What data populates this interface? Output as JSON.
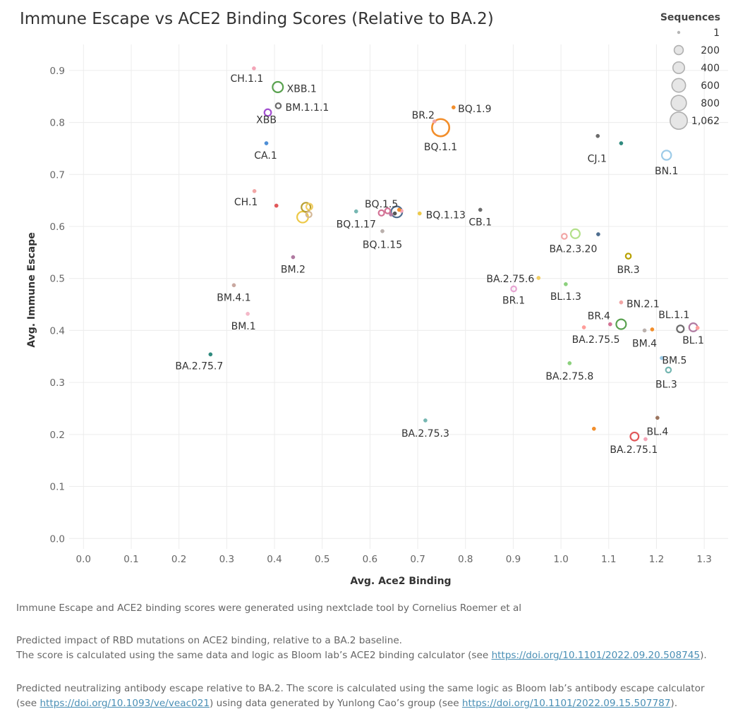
{
  "title": "Immune Escape vs ACE2 Binding Scores (Relative to BA.2)",
  "footer": {
    "note1": "Immune Escape and ACE2 binding scores were generated using nextclade tool by Cornelius Roemer et al",
    "note2_line1": "Predicted impact of RBD mutations on ACE2 binding, relative to a BA.2 baseline.",
    "note2_line2": "The score is calculated using the same data and logic as Bloom lab’s ACE2 binding calculator (see ",
    "note2_link": "https://doi.org/10.1101/2022.09.20.508745",
    "note2_end": ").",
    "note3_line1": "Predicted neutralizing antibody escape relative to BA.2. The score is calculated using the same logic as Bloom lab’s antibody escape calculator",
    "note3_pre": "(see ",
    "note3_link1": "https://doi.org/10.1093/ve/veac021",
    "note3_mid": ") using data generated by Yunlong Cao’s group (see ",
    "note3_link2": "https://doi.org/10.1101/2022.09.15.507787",
    "note3_end": ")."
  },
  "chart_data": {
    "type": "scatter",
    "xlabel": "Avg. Ace2 Binding",
    "ylabel": "Avg. Immune Escape",
    "xlim": [
      -0.03,
      1.35
    ],
    "ylim": [
      -0.02,
      0.95
    ],
    "xticks": [
      "0.0",
      "0.1",
      "0.2",
      "0.3",
      "0.4",
      "0.5",
      "0.6",
      "0.7",
      "0.8",
      "0.9",
      "1.0",
      "1.1",
      "1.2",
      "1.3"
    ],
    "yticks": [
      "0.0",
      "0.1",
      "0.2",
      "0.3",
      "0.4",
      "0.5",
      "0.6",
      "0.7",
      "0.8",
      "0.9"
    ],
    "grid": true,
    "legend": {
      "title": "Sequences",
      "position": "top-right",
      "entries": [
        {
          "label": "1",
          "size": 1
        },
        {
          "label": "200",
          "size": 200
        },
        {
          "label": "400",
          "size": 400
        },
        {
          "label": "600",
          "size": 600
        },
        {
          "label": "800",
          "size": 800
        },
        {
          "label": "1,062",
          "size": 1062
        }
      ]
    },
    "points": [
      {
        "label": "CH.1.1",
        "x": 0.357,
        "y": 0.904,
        "size": 5,
        "color": "#f4a6b8"
      },
      {
        "label": "XBB.1",
        "x": 0.407,
        "y": 0.868,
        "size": 300,
        "color": "#59a14f"
      },
      {
        "label": "BM.1.1.1",
        "x": 0.408,
        "y": 0.832,
        "size": 30,
        "color": "#6b6b6b"
      },
      {
        "label": "XBB",
        "x": 0.386,
        "y": 0.819,
        "size": 80,
        "color": "#a24fd0"
      },
      {
        "label": "CA.1",
        "x": 0.383,
        "y": 0.76,
        "size": 20,
        "color": "#4e8fd6"
      },
      {
        "label": "BR.2",
        "x": 0.735,
        "y": 0.802,
        "size": 3,
        "color": "#f2a6a6"
      },
      {
        "label": "BQ.1.9",
        "x": 0.775,
        "y": 0.829,
        "size": 15,
        "color": "#f28e2b"
      },
      {
        "label": "BQ.1.1",
        "x": 0.748,
        "y": 0.79,
        "size": 1062,
        "color": "#f28e2b"
      },
      {
        "label": "CJ.1",
        "x": 1.077,
        "y": 0.774,
        "size": 5,
        "color": "#6b6b6b"
      },
      {
        "label": "",
        "x": 1.126,
        "y": 0.76,
        "size": 8,
        "color": "#2f8a7e"
      },
      {
        "label": "BN.1",
        "x": 1.221,
        "y": 0.737,
        "size": 220,
        "color": "#9dcbe8"
      },
      {
        "label": "CH.1",
        "x": 0.358,
        "y": 0.668,
        "size": 5,
        "color": "#f2a6a6"
      },
      {
        "label": "",
        "x": 0.404,
        "y": 0.64,
        "size": 5,
        "color": "#e15759"
      },
      {
        "label": "",
        "x": 0.466,
        "y": 0.637,
        "size": 200,
        "color": "#b8a032"
      },
      {
        "label": "",
        "x": 0.473,
        "y": 0.638,
        "size": 60,
        "color": "#f1ce63"
      },
      {
        "label": "",
        "x": 0.459,
        "y": 0.618,
        "size": 350,
        "color": "#edc948"
      },
      {
        "label": "",
        "x": 0.472,
        "y": 0.623,
        "size": 40,
        "color": "#d4b896"
      },
      {
        "label": "BQ.1.17",
        "x": 0.571,
        "y": 0.629,
        "size": 5,
        "color": "#76b7b2"
      },
      {
        "label": "BQ.1.5",
        "x": 0.624,
        "y": 0.626,
        "size": 40,
        "color": "#d37295"
      },
      {
        "label": "",
        "x": 0.637,
        "y": 0.63,
        "size": 30,
        "color": "#d37295"
      },
      {
        "label": "",
        "x": 0.644,
        "y": 0.623,
        "size": 8,
        "color": "#b07aa1"
      },
      {
        "label": "",
        "x": 0.666,
        "y": 0.63,
        "size": 25,
        "color": "#f4a6b8"
      },
      {
        "label": "",
        "x": 0.656,
        "y": 0.628,
        "size": 350,
        "color": "#4e6d8f"
      },
      {
        "label": "",
        "x": 0.652,
        "y": 0.625,
        "size": 15,
        "color": "#555555"
      },
      {
        "label": "",
        "x": 0.661,
        "y": 0.632,
        "size": 15,
        "color": "#f28e2b"
      },
      {
        "label": "BQ.1.15",
        "x": 0.626,
        "y": 0.591,
        "size": 5,
        "color": "#bab0ac"
      },
      {
        "label": "BQ.1.13",
        "x": 0.704,
        "y": 0.625,
        "size": 5,
        "color": "#edc948"
      },
      {
        "label": "CB.1",
        "x": 0.831,
        "y": 0.632,
        "size": 12,
        "color": "#6b6b6b"
      },
      {
        "label": "",
        "x": 1.007,
        "y": 0.581,
        "size": 30,
        "color": "#f2a6a6"
      },
      {
        "label": "BA.2.3.20",
        "x": 1.03,
        "y": 0.586,
        "size": 200,
        "color": "#b3e08a"
      },
      {
        "label": "",
        "x": 1.078,
        "y": 0.585,
        "size": 8,
        "color": "#4e6d8f"
      },
      {
        "label": "BR.3",
        "x": 1.141,
        "y": 0.543,
        "size": 30,
        "color": "#b8a000"
      },
      {
        "label": "BM.2",
        "x": 0.439,
        "y": 0.541,
        "size": 5,
        "color": "#b07aa1"
      },
      {
        "label": "BA.2.75.6",
        "x": 0.953,
        "y": 0.501,
        "size": 10,
        "color": "#f1ce63"
      },
      {
        "label": "BR.1",
        "x": 0.901,
        "y": 0.48,
        "size": 30,
        "color": "#e7a6d3"
      },
      {
        "label": "BL.1.3",
        "x": 1.01,
        "y": 0.489,
        "size": 5,
        "color": "#8cd17d"
      },
      {
        "label": "BM.4.1",
        "x": 0.315,
        "y": 0.487,
        "size": 5,
        "color": "#c9a8a0"
      },
      {
        "label": "BN.2.1",
        "x": 1.126,
        "y": 0.454,
        "size": 5,
        "color": "#f2a6a6"
      },
      {
        "label": "BM.1",
        "x": 0.344,
        "y": 0.432,
        "size": 5,
        "color": "#f4b8c8"
      },
      {
        "label": "BR.4",
        "x": 1.103,
        "y": 0.412,
        "size": 12,
        "color": "#d37295"
      },
      {
        "label": "",
        "x": 1.126,
        "y": 0.412,
        "size": 250,
        "color": "#59a14f"
      },
      {
        "label": "BA.2.75.5",
        "x": 1.048,
        "y": 0.406,
        "size": 8,
        "color": "#ff9d9a"
      },
      {
        "label": "BM.4",
        "x": 1.175,
        "y": 0.4,
        "size": 12,
        "color": "#bab0ac"
      },
      {
        "label": "",
        "x": 1.191,
        "y": 0.402,
        "size": 12,
        "color": "#f28e2b"
      },
      {
        "label": "BL.1.1",
        "x": 1.25,
        "y": 0.403,
        "size": 90,
        "color": "#6b6b6b"
      },
      {
        "label": "BL.1",
        "x": 1.277,
        "y": 0.406,
        "size": 150,
        "color": "#b07aa1"
      },
      {
        "label": "",
        "x": 1.286,
        "y": 0.405,
        "size": 15,
        "color": "#ff9d9a"
      },
      {
        "label": "BA.2.75.7",
        "x": 0.266,
        "y": 0.354,
        "size": 5,
        "color": "#2f8a7e"
      },
      {
        "label": "BM.5",
        "x": 1.211,
        "y": 0.347,
        "size": 5,
        "color": "#9dcbe8"
      },
      {
        "label": "BA.2.75.8",
        "x": 1.018,
        "y": 0.337,
        "size": 5,
        "color": "#8cd17d"
      },
      {
        "label": "BL.3",
        "x": 1.225,
        "y": 0.324,
        "size": 30,
        "color": "#76b7b2"
      },
      {
        "label": "BA.2.75.3",
        "x": 0.716,
        "y": 0.227,
        "size": 5,
        "color": "#76b7b2"
      },
      {
        "label": "",
        "x": 1.202,
        "y": 0.232,
        "size": 5,
        "color": "#9c755f"
      },
      {
        "label": "",
        "x": 1.069,
        "y": 0.211,
        "size": 25,
        "color": "#f28e2b"
      },
      {
        "label": "BL.4",
        "x": 1.177,
        "y": 0.191,
        "size": 8,
        "color": "#f4a6b8"
      },
      {
        "label": "BA.2.75.1",
        "x": 1.154,
        "y": 0.196,
        "size": 150,
        "color": "#e15759"
      }
    ]
  }
}
